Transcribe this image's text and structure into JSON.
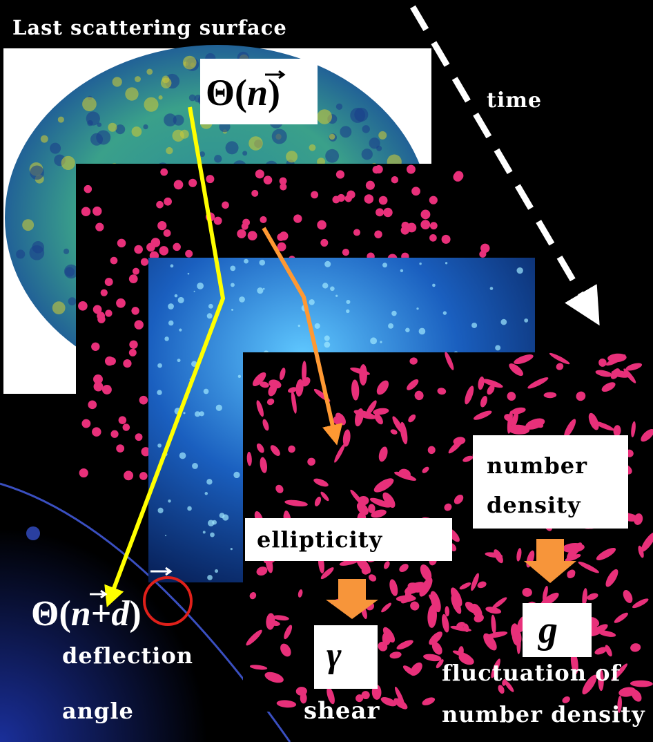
{
  "header": {
    "title": "Last scattering surface"
  },
  "time": "time",
  "top_formula": {
    "parts": [
      "Θ(",
      "n",
      ")"
    ]
  },
  "bottom_formula": {
    "parts": [
      "Θ(",
      "n",
      "+",
      "d",
      ")"
    ]
  },
  "deflection": {
    "lines": [
      "deflection",
      "angle"
    ]
  },
  "ellipticity": "ellipticity",
  "number_density": {
    "lines": [
      "number",
      "density"
    ]
  },
  "shear": {
    "symbol": "γ",
    "label": "shear"
  },
  "fluctuation": {
    "symbol": "g",
    "lines": [
      "fluctuation of",
      "number density"
    ]
  }
}
